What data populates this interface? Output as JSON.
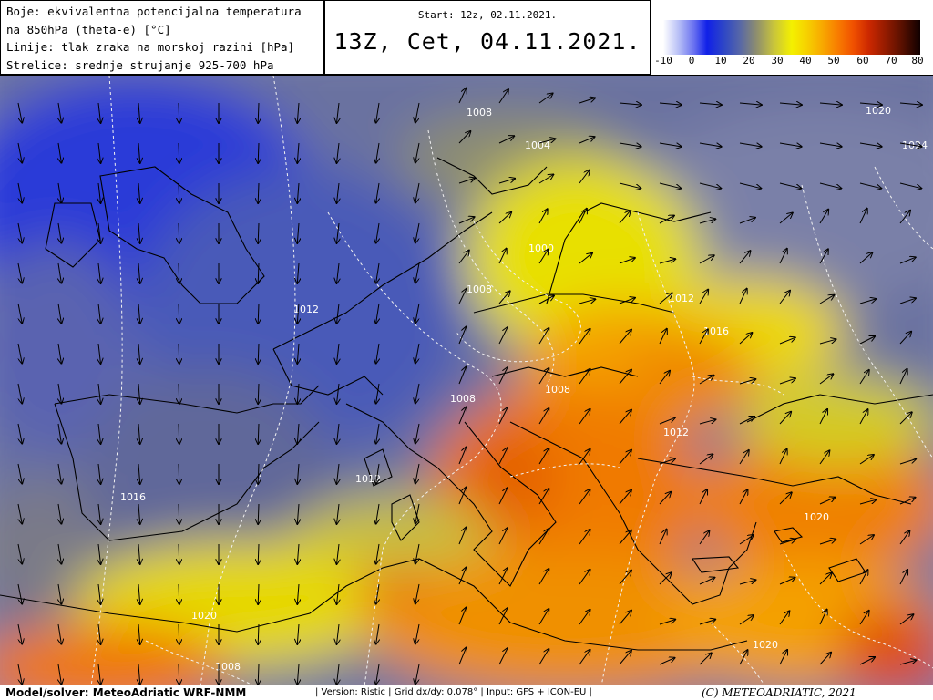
{
  "header": {
    "legend_lines": [
      "Boje: ekvivalentna potencijalna temperatura",
      "na 850hPa (theta-e) [°C]",
      "Linije: tlak zraka na morskoj razini [hPa]",
      "Strelice: srednje strujanje 925-700 hPa"
    ],
    "start": "Start: 12z, 02.11.2021.",
    "valid": "13Z, Cet, 04.11.2021."
  },
  "colorbar": {
    "ticks": [
      "-10",
      "0",
      "10",
      "20",
      "30",
      "40",
      "50",
      "60",
      "70",
      "80"
    ],
    "colors": [
      "#ffffff",
      "#1020e8",
      "#5868a6",
      "#f4f000",
      "#f87c00",
      "#cc2800",
      "#100000"
    ]
  },
  "isobars": [
    "1008",
    "1004",
    "1000",
    "1008",
    "1012",
    "1012",
    "1016",
    "1020",
    "1024",
    "1008",
    "1008",
    "1012",
    "1016",
    "1012",
    "1008",
    "1020",
    "1020",
    "1016",
    "1020",
    "1012"
  ],
  "footer": {
    "model": "Model/solver: MeteoAdriatic WRF-NMM",
    "meta": "| Version: Ristic | Grid dx/dy: 0.078° | Input: GFS + ICON-EU |",
    "copyright": "(C) METEOADRIATIC, 2021"
  }
}
